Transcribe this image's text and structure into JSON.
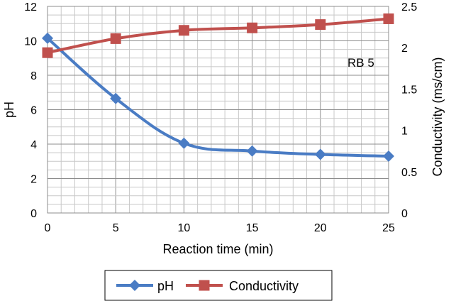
{
  "chart_data": {
    "type": "line",
    "title": "",
    "xlabel": "Reaction time (min)",
    "ylabel": "pH",
    "y2label": "Conductivity (ms/cm)",
    "x": [
      0,
      5,
      10,
      15,
      20,
      25
    ],
    "x_ticks": [
      "0",
      "5",
      "10",
      "15",
      "20",
      "25"
    ],
    "xlim": [
      0,
      25
    ],
    "ylim": [
      0,
      12
    ],
    "y2lim": [
      0,
      2.5
    ],
    "y_ticks": [
      "0",
      "2",
      "4",
      "6",
      "8",
      "10",
      "12"
    ],
    "y2_ticks": [
      "0",
      "0.5",
      "1",
      "1.5",
      "2",
      "2.5"
    ],
    "grid": true,
    "annotation": "RB 5",
    "legend_position": "bottom",
    "series": [
      {
        "name": "pH",
        "axis": "left",
        "marker": "diamond",
        "color": "#4a7cc4",
        "values": [
          10.15,
          6.65,
          4.05,
          3.6,
          3.4,
          3.3
        ]
      },
      {
        "name": "Conductivity",
        "axis": "right",
        "marker": "square",
        "color": "#c0504d",
        "values": [
          1.94,
          2.11,
          2.21,
          2.24,
          2.28,
          2.35
        ]
      }
    ]
  }
}
